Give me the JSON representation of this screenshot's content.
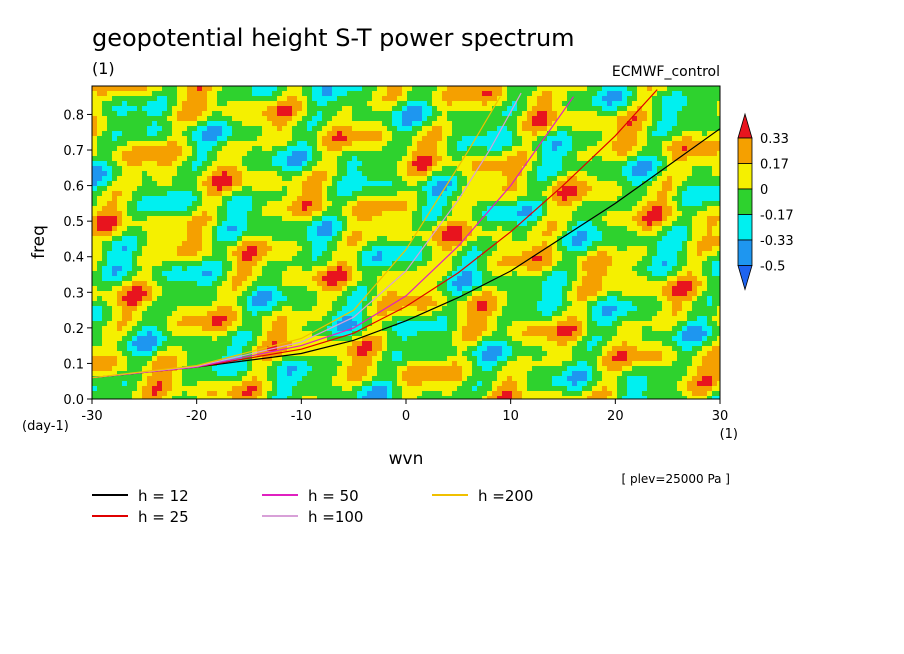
{
  "chart_data": {
    "type": "heatmap",
    "title": "geopotential height S-T power spectrum",
    "subtitle_left": "(1)",
    "subtitle_right": "ECMWF_control",
    "xlabel": "wvn",
    "ylabel": "freq",
    "x_unit": "(1)",
    "y_unit": "(day-1)",
    "note": "[ plev=25000 Pa ]",
    "xlim": [
      -30,
      30
    ],
    "ylim": [
      0,
      0.88
    ],
    "x_ticks": [
      "-30",
      "-20",
      "-10",
      "0",
      "10",
      "20",
      "30"
    ],
    "y_ticks": [
      "0.0",
      "0.1",
      "0.2",
      "0.3",
      "0.4",
      "0.5",
      "0.6",
      "0.7",
      "0.8"
    ],
    "colorbar": {
      "levels": [
        "0.33",
        "0.17",
        "0",
        "-0.17",
        "-0.33",
        "-0.5"
      ],
      "colors": [
        "#e8141e",
        "#f5a000",
        "#f5f000",
        "#2ed22e",
        "#00f0f0",
        "#1e96f0",
        "#1e64f0"
      ]
    },
    "fill_colors": {
      "below_-0.5": "#1e64f0",
      "-0.5_to_-0.33": "#1e96f0",
      "-0.33_to_-0.17": "#00f0f0",
      "-0.17_to_0": "#2ed22e",
      "0_to_0.17": "#f5f000",
      "0.17_to_0.33": "#f5a000",
      "above_0.33": "#e8141e"
    },
    "series": [
      {
        "name": "h = 12",
        "color": "#000000",
        "x": [
          -30,
          -20,
          -10,
          -5,
          0,
          5,
          10,
          20,
          30
        ],
        "y": [
          0.06,
          0.09,
          0.128,
          0.165,
          0.22,
          0.285,
          0.36,
          0.55,
          0.76
        ]
      },
      {
        "name": "h = 25",
        "color": "#e00000",
        "x": [
          -30,
          -20,
          -10,
          -5,
          0,
          5,
          10,
          15,
          20,
          24
        ],
        "y": [
          0.06,
          0.09,
          0.14,
          0.185,
          0.26,
          0.355,
          0.47,
          0.6,
          0.74,
          0.87
        ]
      },
      {
        "name": "h = 50",
        "color": "#e020c0",
        "x": [
          -30,
          -20,
          -10,
          -5,
          0,
          5,
          10,
          16
        ],
        "y": [
          0.06,
          0.09,
          0.15,
          0.2,
          0.29,
          0.43,
          0.6,
          0.85
        ]
      },
      {
        "name": "h =100",
        "color": "#d8a0d8",
        "x": [
          -30,
          -20,
          -10,
          -5,
          0,
          5,
          8,
          11
        ],
        "y": [
          0.06,
          0.092,
          0.16,
          0.23,
          0.36,
          0.56,
          0.7,
          0.86
        ]
      },
      {
        "name": "h =200",
        "color": "#f0c000",
        "x": [
          -30,
          -20,
          -10,
          -5,
          0,
          3,
          6,
          9
        ],
        "y": [
          0.06,
          0.094,
          0.17,
          0.25,
          0.42,
          0.56,
          0.7,
          0.85
        ]
      }
    ]
  },
  "legend": [
    {
      "label": "h = 12",
      "color": "#000000"
    },
    {
      "label": "h = 25",
      "color": "#e00000"
    },
    {
      "label": "h = 50",
      "color": "#e020c0"
    },
    {
      "label": "h =100",
      "color": "#d8a0d8"
    },
    {
      "label": "h =200",
      "color": "#f0c000"
    }
  ]
}
